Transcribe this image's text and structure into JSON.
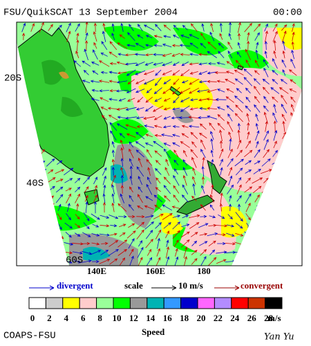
{
  "header": {
    "title": "FSU/QuikSCAT 13 September 2004",
    "time": "00:00"
  },
  "map": {
    "lat_labels": [
      "20S",
      "40S",
      "60S"
    ],
    "lon_labels": [
      "140E",
      "160E",
      "180"
    ]
  },
  "legend": {
    "divergent": "divergent",
    "scale": "scale",
    "scale_value": "10 m/s",
    "convergent": "convergent"
  },
  "colorbar": {
    "ticks": [
      0,
      2,
      4,
      6,
      8,
      10,
      12,
      14,
      16,
      18,
      20,
      22,
      24,
      26,
      28
    ],
    "unit": "m/s",
    "title": "Speed",
    "colors": [
      "#ffffff",
      "#cccccc",
      "#ffff00",
      "#ffcccc",
      "#99ff99",
      "#00ff00",
      "#999999",
      "#00b3b3",
      "#3399ff",
      "#0000cc",
      "#ff66ff",
      "#b38cff",
      "#ff0000",
      "#cc3300",
      "#000000"
    ]
  },
  "footer": {
    "org": "COAPS-FSU",
    "author": "Yan Yu"
  }
}
